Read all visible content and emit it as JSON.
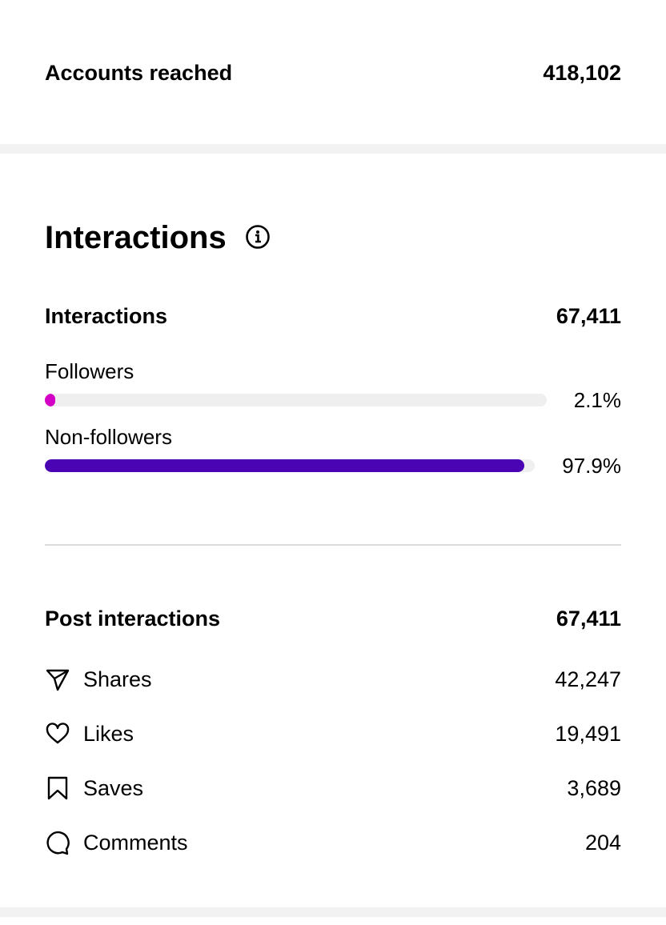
{
  "reach": {
    "label": "Accounts reached",
    "value": "418,102"
  },
  "interactions": {
    "heading": "Interactions",
    "total": {
      "label": "Interactions",
      "value": "67,411"
    },
    "audience": [
      {
        "label": "Followers",
        "percent": {
          "value": 2.1,
          "label": "2.1%"
        },
        "color": "#d300c5"
      },
      {
        "label": "Non-followers",
        "percent": {
          "value": 97.9,
          "label": "97.9%"
        },
        "color": "#4a04b4"
      }
    ]
  },
  "post_interactions": {
    "total": {
      "label": "Post interactions",
      "value": "67,411"
    },
    "rows": [
      {
        "label": "Shares",
        "value": "42,247"
      },
      {
        "label": "Likes",
        "value": "19,491"
      },
      {
        "label": "Saves",
        "value": "3,689"
      },
      {
        "label": "Comments",
        "value": "204"
      }
    ]
  }
}
